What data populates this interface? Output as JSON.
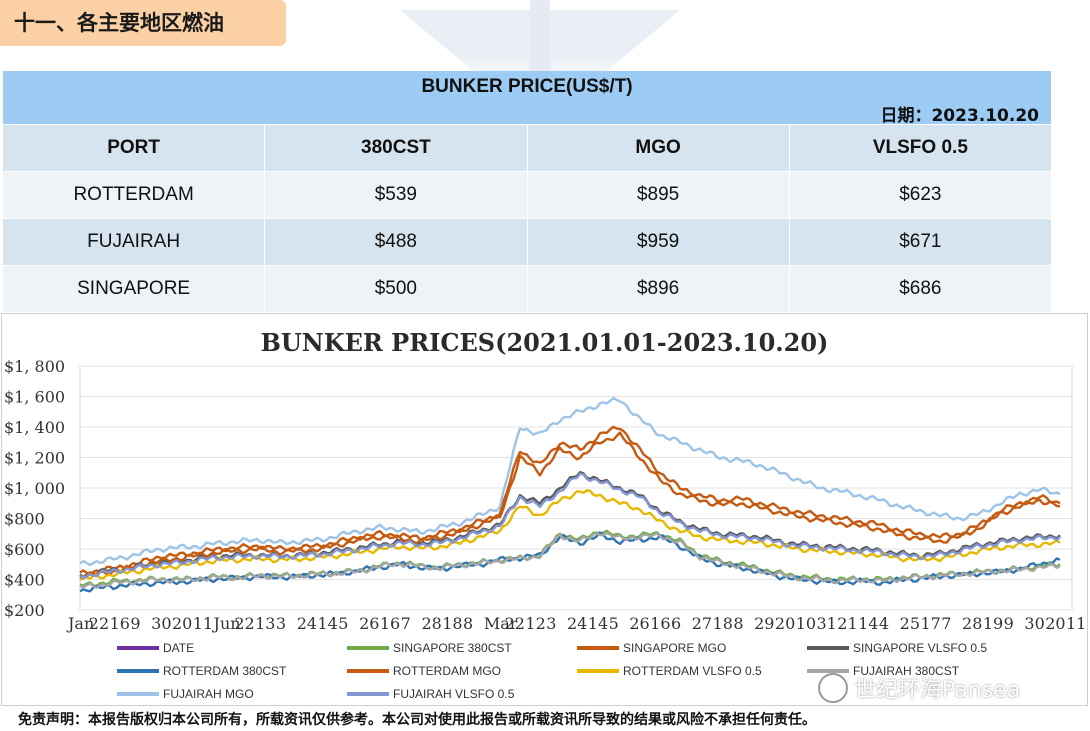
{
  "section_tag": "十一、各主要地区燃油",
  "price_table": {
    "title": "BUNKER PRICE(US$/T)",
    "date": "日期：2023.10.20",
    "headers": [
      "PORT",
      "380CST",
      "MGO",
      "VLSFO 0.5"
    ],
    "rows": [
      [
        "ROTTERDAM",
        "$539",
        "$895",
        "$623"
      ],
      [
        "FUJAIRAH",
        "$488",
        "$959",
        "$671"
      ],
      [
        "SINGAPORE",
        "$500",
        "$896",
        "$686"
      ]
    ]
  },
  "chart_data": {
    "type": "line",
    "title": "BUNKER PRICES(2021.01.01-2023.10.20)",
    "ylim": [
      200,
      1800
    ],
    "yticks": [
      "$200",
      "$400",
      "$600",
      "$800",
      "$1, 000",
      "$1, 200",
      "$1, 400",
      "$1, 600",
      "$1, 800"
    ],
    "xticks": [
      "Jan",
      "22",
      "16",
      "9",
      "30",
      "20",
      "11",
      "Jun",
      "22",
      "13",
      "3",
      "24",
      "14",
      "5",
      "26",
      "16",
      "7",
      "28",
      "18",
      "8",
      "Mar",
      "22",
      "12",
      "3",
      "24",
      "14",
      "5",
      "26",
      "16",
      "6",
      "27",
      "18",
      "8",
      "29",
      "20",
      "10",
      "31",
      "21",
      "14",
      "4",
      "25",
      "17",
      "7",
      "28",
      "19",
      "9",
      "30",
      "20",
      "11"
    ],
    "grid": true,
    "legend_position": "bottom",
    "series": [
      {
        "name": "DATE",
        "color": "#7030a0",
        "values": []
      },
      {
        "name": "SINGAPORE 380CST",
        "color": "#70ad47",
        "values": [
          360,
          375,
          390,
          395,
          405,
          400,
          410,
          420,
          415,
          430,
          425,
          430,
          440,
          445,
          460,
          490,
          510,
          490,
          480,
          500,
          510,
          530,
          540,
          560,
          700,
          660,
          720,
          680,
          690,
          700,
          650,
          560,
          520,
          500,
          470,
          440,
          420,
          410,
          400,
          405,
          400,
          410,
          420,
          430,
          440,
          450,
          460,
          470,
          490,
          500
        ]
      },
      {
        "name": "SINGAPORE MGO",
        "color": "#c55a11",
        "values": [
          440,
          460,
          480,
          510,
          550,
          560,
          580,
          600,
          610,
          620,
          600,
          610,
          620,
          650,
          680,
          700,
          690,
          670,
          700,
          730,
          780,
          830,
          1250,
          1150,
          1300,
          1250,
          1350,
          1400,
          1250,
          1100,
          1000,
          950,
          920,
          930,
          900,
          870,
          840,
          820,
          800,
          780,
          760,
          720,
          700,
          680,
          700,
          760,
          850,
          900,
          940,
          900
        ]
      },
      {
        "name": "SINGAPORE VLSFO 0.5",
        "color": "#595959",
        "values": [
          430,
          450,
          470,
          490,
          510,
          520,
          540,
          555,
          560,
          560,
          555,
          560,
          575,
          590,
          610,
          630,
          650,
          640,
          650,
          680,
          720,
          760,
          950,
          900,
          1000,
          1100,
          1050,
          1000,
          950,
          850,
          780,
          730,
          700,
          690,
          680,
          650,
          630,
          620,
          610,
          600,
          590,
          570,
          560,
          570,
          600,
          630,
          650,
          670,
          680,
          690
        ]
      },
      {
        "name": "ROTTERDAM 380CST",
        "color": "#2e75b6",
        "values": [
          330,
          345,
          360,
          370,
          380,
          385,
          395,
          405,
          410,
          420,
          415,
          420,
          430,
          440,
          460,
          480,
          500,
          480,
          470,
          490,
          500,
          530,
          540,
          560,
          680,
          640,
          690,
          650,
          660,
          680,
          620,
          540,
          500,
          480,
          450,
          420,
          400,
          390,
          380,
          390,
          380,
          395,
          405,
          420,
          430,
          440,
          450,
          470,
          500,
          530
        ]
      },
      {
        "name": "ROTTERDAM MGO",
        "color": "#c55a11",
        "values": [
          420,
          440,
          460,
          490,
          520,
          540,
          560,
          580,
          590,
          600,
          580,
          590,
          600,
          630,
          660,
          680,
          670,
          650,
          680,
          710,
          760,
          810,
          1200,
          1100,
          1250,
          1200,
          1300,
          1350,
          1200,
          1050,
          960,
          920,
          890,
          900,
          870,
          840,
          810,
          790,
          770,
          750,
          730,
          690,
          670,
          650,
          680,
          740,
          830,
          880,
          920,
          880
        ]
      },
      {
        "name": "ROTTERDAM VLSFO 0.5",
        "color": "#e6b800",
        "values": [
          400,
          420,
          440,
          460,
          480,
          490,
          510,
          525,
          530,
          535,
          530,
          535,
          545,
          560,
          580,
          600,
          615,
          605,
          615,
          640,
          680,
          720,
          880,
          820,
          920,
          980,
          950,
          900,
          860,
          780,
          720,
          680,
          660,
          650,
          640,
          620,
          600,
          590,
          580,
          570,
          560,
          540,
          530,
          540,
          560,
          590,
          610,
          625,
          630,
          640
        ]
      },
      {
        "name": "FUJAIRAH 380CST",
        "color": "#a6a6a6",
        "values": [
          350,
          365,
          380,
          390,
          400,
          395,
          405,
          415,
          410,
          425,
          420,
          425,
          435,
          440,
          455,
          485,
          505,
          485,
          475,
          495,
          505,
          525,
          535,
          555,
          690,
          650,
          710,
          670,
          680,
          690,
          640,
          550,
          510,
          490,
          460,
          430,
          410,
          400,
          390,
          400,
          390,
          405,
          415,
          425,
          435,
          445,
          455,
          465,
          480,
          490
        ]
      },
      {
        "name": "FUJAIRAH MGO",
        "color": "#9dc3e6",
        "values": [
          500,
          520,
          540,
          570,
          600,
          610,
          620,
          640,
          650,
          660,
          640,
          650,
          660,
          690,
          720,
          740,
          730,
          710,
          740,
          770,
          820,
          880,
          1400,
          1350,
          1450,
          1500,
          1550,
          1580,
          1450,
          1350,
          1300,
          1250,
          1200,
          1180,
          1150,
          1100,
          1050,
          1000,
          980,
          950,
          920,
          880,
          850,
          820,
          800,
          830,
          900,
          960,
          990,
          960
        ]
      },
      {
        "name": "FUJAIRAH VLSFO 0.5",
        "color": "#8497d3",
        "values": [
          420,
          440,
          460,
          480,
          500,
          510,
          530,
          545,
          550,
          555,
          550,
          555,
          565,
          580,
          600,
          620,
          640,
          630,
          640,
          670,
          710,
          750,
          940,
          880,
          980,
          1090,
          1040,
          990,
          940,
          840,
          770,
          720,
          690,
          680,
          670,
          640,
          620,
          610,
          600,
          590,
          580,
          560,
          550,
          560,
          590,
          620,
          640,
          660,
          670,
          680
        ]
      }
    ]
  },
  "legend": [
    "DATE",
    "SINGAPORE 380CST",
    "SINGAPORE MGO",
    "SINGAPORE VLSFO 0.5",
    "ROTTERDAM 380CST",
    "ROTTERDAM MGO",
    "ROTTERDAM VLSFO 0.5",
    "FUJAIRAH 380CST",
    "FUJAIRAH MGO",
    "FUJAIRAH VLSFO 0.5"
  ],
  "legend_colors": [
    "#7030a0",
    "#70ad47",
    "#c55a11",
    "#595959",
    "#2e75b6",
    "#c55a11",
    "#e6b800",
    "#a6a6a6",
    "#9dc3e6",
    "#8497d3"
  ],
  "brand": "世纪环海Pansea",
  "footer": "免责声明：本报告版权归本公司所有，所载资讯仅供参考。本公司对使用此报告或所载资讯所导致的结果或风险不承担任何责任。"
}
